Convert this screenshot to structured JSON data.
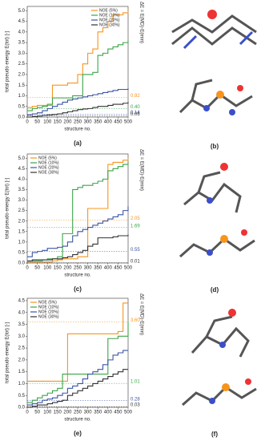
{
  "chart_data": [
    {
      "type": "step",
      "label": "(a)",
      "y_label": "total pseudo energy E(tot) [-]",
      "x_label": "structure no.",
      "side_label": "ΔE = E(MD)-E(min)",
      "legend": "top-right",
      "x": [
        0,
        25,
        50,
        75,
        100,
        125,
        150,
        175,
        200,
        225,
        250,
        275,
        300,
        325,
        350,
        375,
        400,
        425,
        450,
        475,
        500
      ],
      "xlim": [
        0,
        500
      ],
      "xticks": [
        0,
        50,
        100,
        150,
        200,
        250,
        300,
        350,
        400,
        450,
        500
      ],
      "ylim": [
        0,
        5.2
      ],
      "yticks": [
        {
          "value": 0,
          "label": "0.0"
        },
        {
          "value": 0.5,
          "label": "0.5"
        },
        {
          "value": 1,
          "label": "1.0"
        },
        {
          "value": 1.5,
          "label": "1.5"
        },
        {
          "value": 2,
          "label": "2.0"
        },
        {
          "value": 2.5,
          "label": "2.5"
        },
        {
          "value": 3,
          "label": "3.0"
        },
        {
          "value": 3.5,
          "label": "3.5"
        },
        {
          "value": 4,
          "label": "4.0"
        },
        {
          "value": 4.5,
          "label": "4.5"
        },
        {
          "value": 5,
          "label": "5.0"
        }
      ],
      "series": [
        {
          "name": "NOE (5%)",
          "color": "#f7941d",
          "values": [
            0.45,
            0.5,
            0.55,
            0.55,
            0.55,
            1.5,
            1.5,
            1.5,
            1.6,
            1.6,
            2.0,
            2.5,
            3.0,
            3.2,
            4.0,
            4.2,
            4.5,
            4.8,
            4.8,
            4.9,
            5.0
          ]
        },
        {
          "name": "NOE (10%)",
          "color": "#3aa547",
          "values": [
            0.3,
            0.4,
            0.45,
            0.5,
            0.6,
            0.9,
            0.9,
            0.9,
            0.9,
            1.0,
            1.0,
            2.0,
            2.0,
            2.1,
            2.9,
            3.0,
            3.2,
            3.3,
            3.4,
            3.5,
            3.6
          ]
        },
        {
          "name": "NOE (20%)",
          "color": "#3b55a5",
          "values": [
            0.1,
            0.15,
            0.2,
            0.3,
            0.4,
            0.5,
            0.6,
            0.7,
            0.8,
            0.85,
            0.9,
            0.95,
            1.0,
            1.05,
            1.1,
            1.15,
            1.2,
            1.25,
            1.3,
            1.3,
            1.35
          ]
        },
        {
          "name": "NOE (30%)",
          "color": "#333333",
          "values": [
            0.0,
            0.02,
            0.05,
            0.08,
            0.1,
            0.12,
            0.15,
            0.2,
            0.25,
            0.3,
            0.35,
            0.38,
            0.4,
            0.45,
            0.5,
            0.5,
            0.55,
            0.6,
            0.6,
            0.65,
            0.7
          ]
        }
      ],
      "annotations": [
        {
          "value": 0.92,
          "label": "0.92"
        },
        {
          "value": 0.4,
          "label": "0.40"
        },
        {
          "value": 0.14,
          "label": "0.14"
        },
        {
          "value": 0.06,
          "label": "0.06"
        }
      ]
    },
    {
      "type": "step",
      "label": "(c)",
      "y_label": "total pseudo energy E(tot) [-]",
      "x_label": "structure no.",
      "side_label": "ΔE = E(MD)-E(min)",
      "legend": "top-left",
      "x": [
        0,
        25,
        50,
        75,
        100,
        125,
        150,
        175,
        200,
        225,
        250,
        275,
        300,
        325,
        350,
        375,
        400,
        425,
        450,
        475,
        500
      ],
      "xlim": [
        0,
        500
      ],
      "xticks": [
        0,
        50,
        100,
        150,
        200,
        250,
        300,
        350,
        400,
        450,
        500
      ],
      "ylim": [
        0,
        5.2
      ],
      "yticks": [
        {
          "value": 0,
          "label": "0.0"
        },
        {
          "value": 0.5,
          "label": "0.5"
        },
        {
          "value": 1,
          "label": "1.0"
        },
        {
          "value": 1.5,
          "label": "1.5"
        },
        {
          "value": 2,
          "label": "2.0"
        },
        {
          "value": 2.5,
          "label": "2.5"
        },
        {
          "value": 3,
          "label": "3.0"
        },
        {
          "value": 3.5,
          "label": "3.5"
        },
        {
          "value": 4,
          "label": "4.0"
        },
        {
          "value": 4.5,
          "label": "4.5"
        },
        {
          "value": 5,
          "label": "5.0"
        }
      ],
      "series": [
        {
          "name": "NOE (5%)",
          "color": "#f7941d",
          "values": [
            0.05,
            0.05,
            0.05,
            0.05,
            0.05,
            0.1,
            0.15,
            0.2,
            0.2,
            0.2,
            0.3,
            0.3,
            2.6,
            2.6,
            2.6,
            2.6,
            4.7,
            4.8,
            4.8,
            4.9,
            5.0
          ]
        },
        {
          "name": "NOE (10%)",
          "color": "#3aa547",
          "values": [
            0.1,
            0.1,
            0.1,
            0.15,
            0.2,
            0.2,
            0.3,
            1.4,
            1.4,
            3.5,
            3.6,
            3.7,
            3.7,
            3.8,
            3.9,
            4.0,
            4.4,
            4.5,
            4.6,
            4.7,
            4.8
          ]
        },
        {
          "name": "NOE (20%)",
          "color": "#3b55a5",
          "values": [
            0.3,
            0.5,
            0.55,
            0.6,
            0.7,
            0.7,
            0.75,
            0.8,
            1.0,
            1.3,
            1.5,
            1.6,
            1.7,
            1.8,
            1.9,
            2.0,
            2.1,
            2.2,
            2.3,
            2.5,
            2.7
          ]
        },
        {
          "name": "NOE (30%)",
          "color": "#333333",
          "values": [
            0.1,
            0.15,
            0.15,
            0.15,
            0.15,
            0.2,
            0.2,
            0.25,
            0.3,
            0.4,
            0.5,
            0.6,
            0.8,
            0.9,
            1.2,
            1.2,
            1.2,
            1.25,
            1.3,
            1.3,
            1.35
          ]
        }
      ],
      "annotations": [
        {
          "value": 2.05,
          "label": "2.05"
        },
        {
          "value": 1.69,
          "label": "1.69"
        },
        {
          "value": 0.55,
          "label": "0.55"
        },
        {
          "value": 0.01,
          "label": "0.01"
        }
      ]
    },
    {
      "type": "step",
      "label": "(e)",
      "y_label": "total pseudo energy E(tot) [-]",
      "x_label": "structure no.",
      "side_label": "ΔE = E(MD)-E(min)",
      "legend": "top-left",
      "x": [
        0,
        25,
        50,
        75,
        100,
        125,
        150,
        175,
        200,
        225,
        250,
        275,
        300,
        325,
        350,
        375,
        400,
        425,
        450,
        475,
        500
      ],
      "xlim": [
        0,
        500
      ],
      "xticks": [
        0,
        50,
        100,
        150,
        200,
        250,
        300,
        350,
        400,
        450,
        500
      ],
      "ylim": [
        0,
        4.6
      ],
      "yticks": [
        {
          "value": 0,
          "label": "0.0"
        },
        {
          "value": 0.5,
          "label": "0.5"
        },
        {
          "value": 1,
          "label": "1.0"
        },
        {
          "value": 1.5,
          "label": "1.5"
        },
        {
          "value": 2,
          "label": "2.0"
        },
        {
          "value": 2.5,
          "label": "2.5"
        },
        {
          "value": 3,
          "label": "3.0"
        },
        {
          "value": 3.5,
          "label": "3.5"
        },
        {
          "value": 4,
          "label": "4.0"
        },
        {
          "value": 4.5,
          "label": "4.5"
        }
      ],
      "series": [
        {
          "name": "NOE (5%)",
          "color": "#f7941d",
          "values": [
            1.1,
            1.1,
            1.1,
            1.1,
            1.1,
            1.1,
            1.1,
            1.1,
            3.1,
            3.1,
            3.1,
            3.1,
            3.1,
            3.1,
            3.1,
            3.1,
            3.1,
            3.1,
            3.2,
            4.4,
            4.4
          ]
        },
        {
          "name": "NOE (10%)",
          "color": "#3aa547",
          "values": [
            0.2,
            0.3,
            0.4,
            0.5,
            0.6,
            0.7,
            0.8,
            1.4,
            1.4,
            1.4,
            1.4,
            1.4,
            1.4,
            1.4,
            1.4,
            1.4,
            2.9,
            2.9,
            3.0,
            3.0,
            3.6
          ]
        },
        {
          "name": "NOE (20%)",
          "color": "#3b55a5",
          "values": [
            0.1,
            0.15,
            0.2,
            0.3,
            0.35,
            0.4,
            0.5,
            0.6,
            0.8,
            0.9,
            1.0,
            1.2,
            1.4,
            1.5,
            1.6,
            1.8,
            2.0,
            2.2,
            2.3,
            2.4,
            2.4
          ]
        },
        {
          "name": "NOE (30%)",
          "color": "#333333",
          "values": [
            0.0,
            0.05,
            0.1,
            0.1,
            0.15,
            0.2,
            0.25,
            0.3,
            0.5,
            0.6,
            0.7,
            0.8,
            0.9,
            1.0,
            1.1,
            1.2,
            1.3,
            1.4,
            1.5,
            1.6,
            1.6
          ]
        }
      ],
      "annotations": [
        {
          "value": 3.6,
          "label": "3.60"
        },
        {
          "value": 1.01,
          "label": "1.01"
        },
        {
          "value": 0.28,
          "label": "0.28"
        },
        {
          "value": 0.03,
          "label": "0.03"
        }
      ]
    }
  ],
  "images": [
    {
      "label": "(b)"
    },
    {
      "label": "(d)"
    },
    {
      "label": "(f)"
    }
  ]
}
